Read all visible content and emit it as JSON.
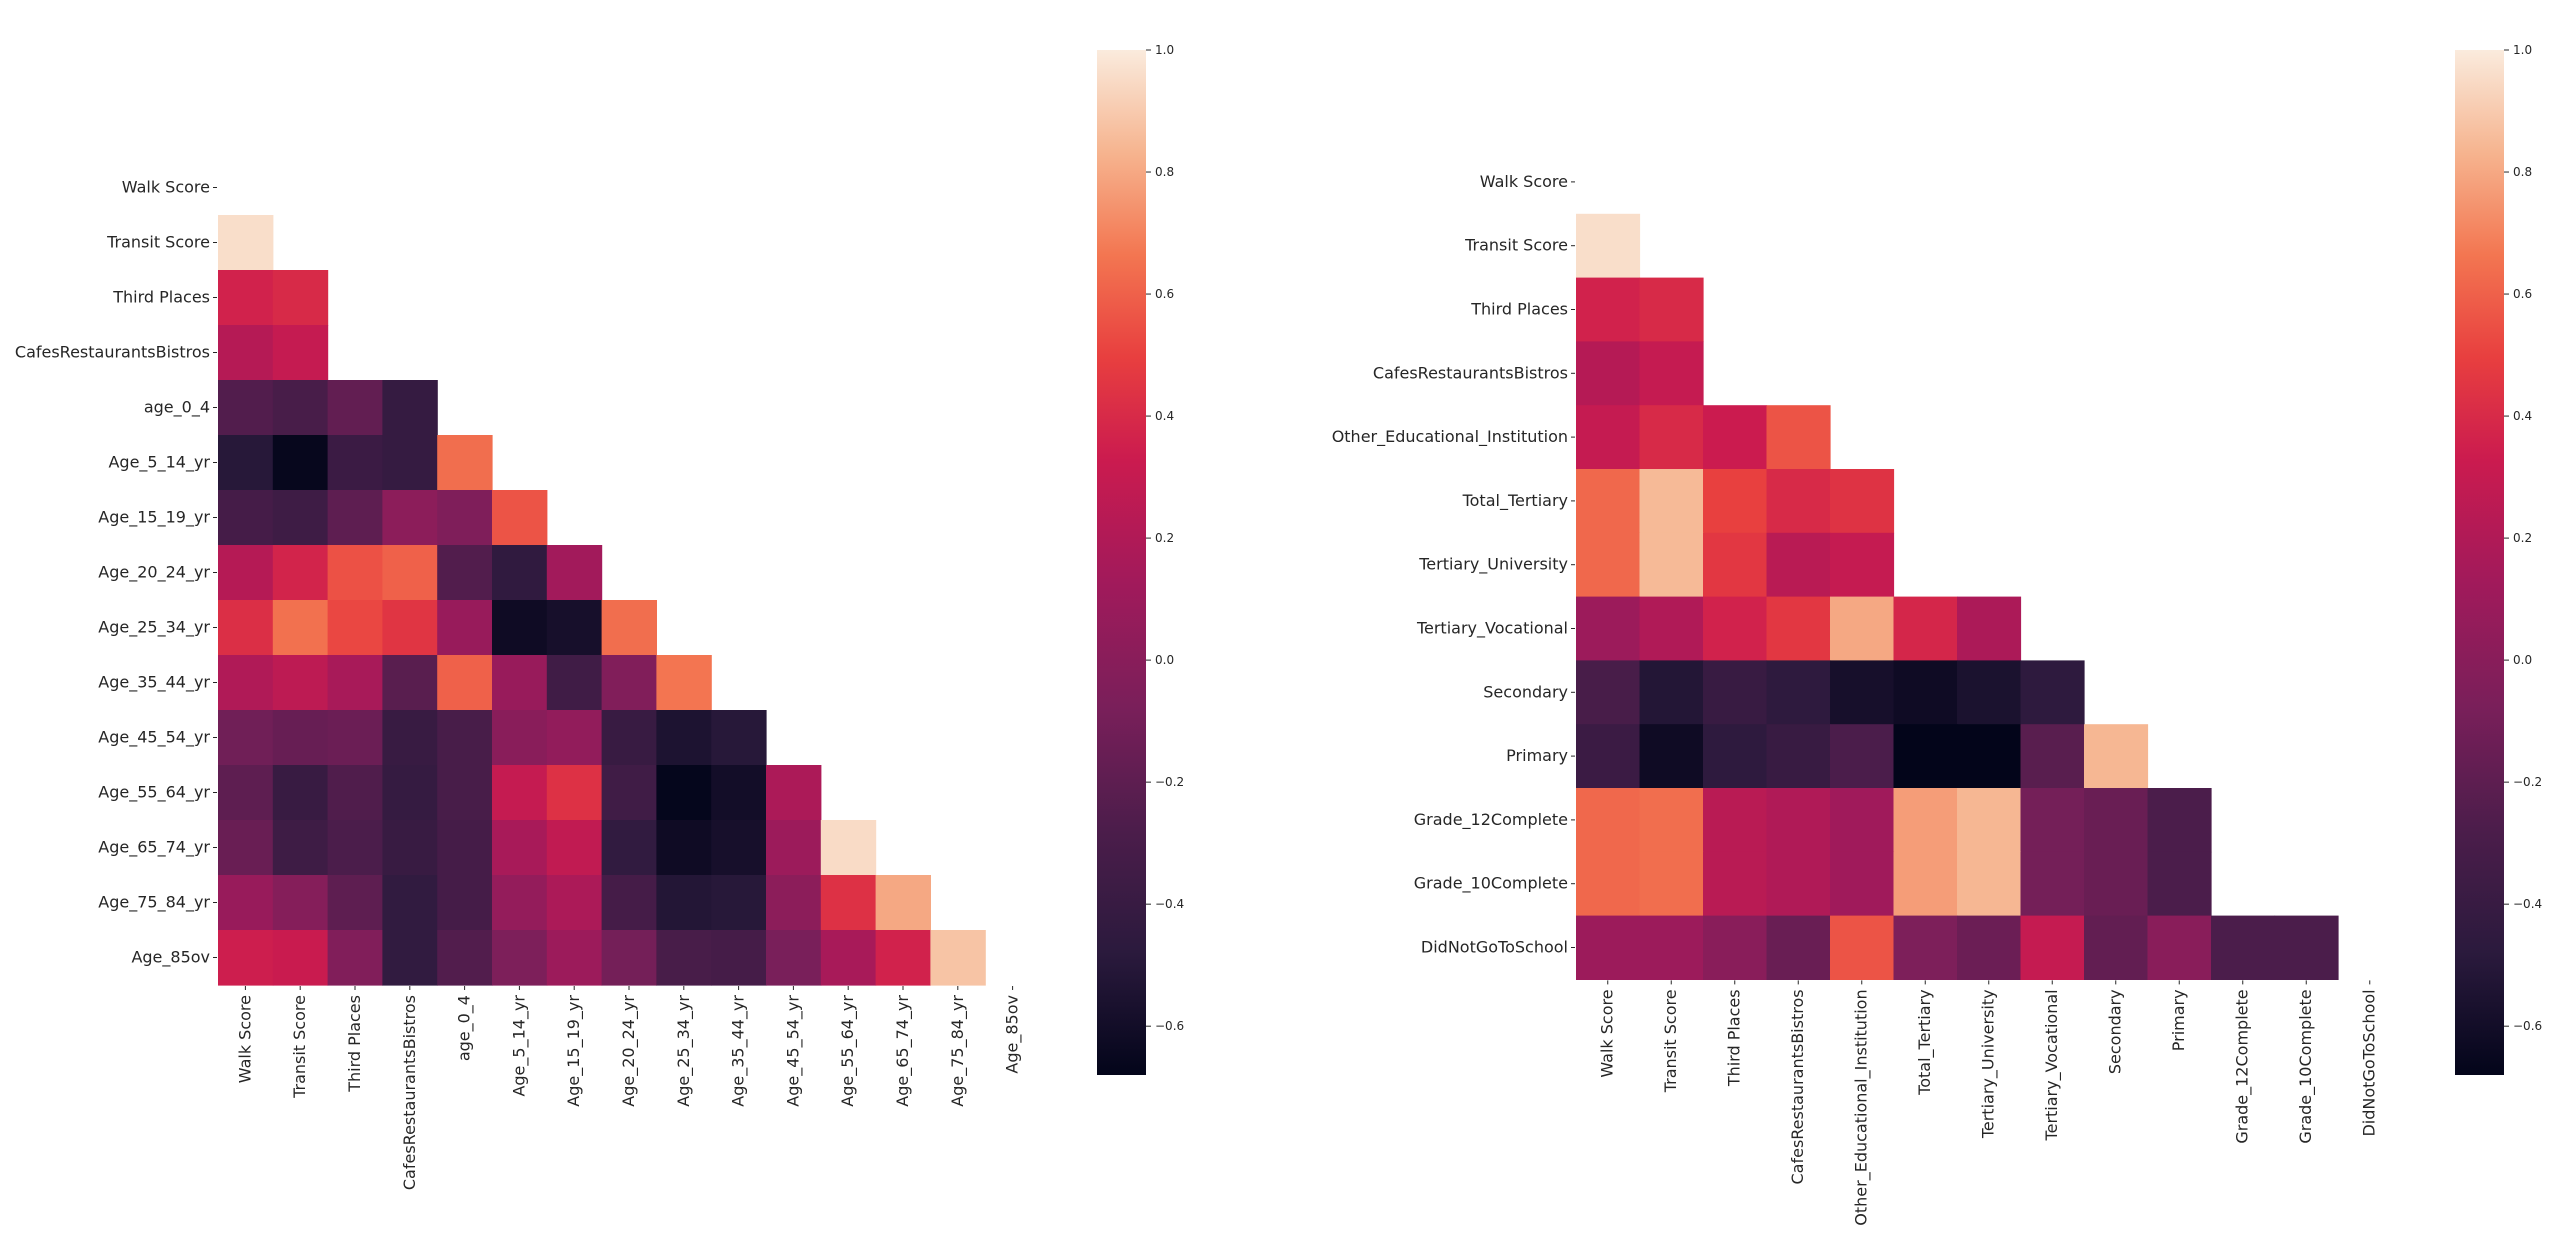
{
  "chart_data": [
    {
      "type": "heatmap",
      "mask": "upper-triangle-including-diagonal",
      "colormap": "rocket",
      "vmin": -0.68,
      "vmax": 1.0,
      "labels": [
        "Walk Score",
        "Transit Score",
        "Third Places",
        "CafesRestaurantsBistros",
        "age_0_4",
        "Age_5_14_yr",
        "Age_15_19_yr",
        "Age_20_24_yr",
        "Age_25_34_yr",
        "Age_35_44_yr",
        "Age_45_54_yr",
        "Age_55_64_yr",
        "Age_65_74_yr",
        "Age_75_84_yr",
        "Age_85ov"
      ],
      "row_labels": [
        "Walk Score",
        "Transit Score",
        "Third Places",
        "CafesRestaurantsBistros",
        "age_0_4",
        "Age_5_14_yr",
        "Age_15_19_yr",
        "Age_20_24_yr",
        "Age_25_34_yr",
        "Age_35_44_yr",
        "Age_45_54_yr",
        "Age_55_64_yr",
        "Age_65_74_yr",
        "Age_75_84_yr",
        "Age_85ov"
      ],
      "values": [
        [
          null,
          null,
          null,
          null,
          null,
          null,
          null,
          null,
          null,
          null,
          null,
          null,
          null,
          null,
          null
        ],
        [
          0.96,
          null,
          null,
          null,
          null,
          null,
          null,
          null,
          null,
          null,
          null,
          null,
          null,
          null,
          null
        ],
        [
          0.36,
          0.4,
          null,
          null,
          null,
          null,
          null,
          null,
          null,
          null,
          null,
          null,
          null,
          null,
          null
        ],
        [
          0.22,
          0.3,
          null,
          null,
          null,
          null,
          null,
          null,
          null,
          null,
          null,
          null,
          null,
          null,
          null
        ],
        [
          -0.25,
          -0.3,
          -0.18,
          -0.42,
          null,
          null,
          null,
          null,
          null,
          null,
          null,
          null,
          null,
          null,
          null
        ],
        [
          -0.5,
          -0.66,
          -0.38,
          -0.42,
          0.64,
          null,
          null,
          null,
          null,
          null,
          null,
          null,
          null,
          null,
          null
        ],
        [
          -0.32,
          -0.36,
          -0.2,
          0.02,
          -0.05,
          0.56,
          null,
          null,
          null,
          null,
          null,
          null,
          null,
          null,
          null
        ],
        [
          0.22,
          0.37,
          0.55,
          0.6,
          -0.25,
          -0.45,
          0.13,
          null,
          null,
          null,
          null,
          null,
          null,
          null,
          null
        ],
        [
          0.42,
          0.65,
          0.52,
          0.45,
          0.08,
          -0.62,
          -0.58,
          0.64,
          null,
          null,
          null,
          null,
          null,
          null,
          null
        ],
        [
          0.2,
          0.26,
          0.16,
          -0.22,
          0.6,
          0.08,
          -0.35,
          -0.04,
          0.66,
          null,
          null,
          null,
          null,
          null,
          null
        ],
        [
          -0.12,
          -0.16,
          -0.14,
          -0.4,
          -0.3,
          0.0,
          0.05,
          -0.4,
          -0.55,
          -0.5,
          null,
          null,
          null,
          null,
          null
        ],
        [
          -0.2,
          -0.4,
          -0.26,
          -0.42,
          -0.3,
          0.3,
          0.43,
          -0.35,
          -0.67,
          -0.6,
          0.18,
          null,
          null,
          null,
          null
        ],
        [
          -0.15,
          -0.36,
          -0.28,
          -0.4,
          -0.32,
          0.16,
          0.28,
          -0.44,
          -0.62,
          -0.58,
          0.1,
          0.95,
          null,
          null,
          null
        ],
        [
          0.08,
          -0.02,
          -0.2,
          -0.44,
          -0.32,
          0.06,
          0.18,
          -0.32,
          -0.52,
          -0.5,
          0.02,
          0.43,
          0.8,
          null,
          null
        ],
        [
          0.34,
          0.32,
          -0.04,
          -0.44,
          -0.25,
          -0.06,
          0.1,
          -0.1,
          -0.3,
          -0.32,
          -0.08,
          0.16,
          0.36,
          0.88,
          null
        ]
      ],
      "colorbar": {
        "ticks": [
          1.0,
          0.8,
          0.6,
          0.4,
          0.2,
          0.0,
          -0.2,
          -0.4,
          -0.6
        ],
        "tick_labels": [
          "1.0",
          "0.8",
          "0.6",
          "0.4",
          "0.2",
          "0.0",
          "−0.2",
          "−0.4",
          "−0.6"
        ]
      }
    },
    {
      "type": "heatmap",
      "mask": "upper-triangle-including-diagonal",
      "colormap": "rocket",
      "vmin": -0.68,
      "vmax": 1.0,
      "labels": [
        "Walk Score",
        "Transit Score",
        "Third Places",
        "CafesRestaurantsBistros",
        "Other_Educational_Institution",
        "Total_Tertiary",
        "Tertiary_University",
        "Tertiary_Vocational",
        "Secondary",
        "Primary",
        "Grade_12Complete",
        "Grade_10Complete",
        "DidNotGoToSchool"
      ],
      "row_labels": [
        "Walk Score",
        "Transit Score",
        "Third Places",
        "CafesRestaurantsBistros",
        "Other_Educational_Institution",
        "Total_Tertiary",
        "Tertiary_University",
        "Tertiary_Vocational",
        "Secondary",
        "Primary",
        "Grade_12Complete",
        "Grade_10Complete",
        "DidNotGoToSchool"
      ],
      "values": [
        [
          null,
          null,
          null,
          null,
          null,
          null,
          null,
          null,
          null,
          null,
          null,
          null,
          null
        ],
        [
          0.96,
          null,
          null,
          null,
          null,
          null,
          null,
          null,
          null,
          null,
          null,
          null,
          null
        ],
        [
          0.36,
          0.4,
          null,
          null,
          null,
          null,
          null,
          null,
          null,
          null,
          null,
          null,
          null
        ],
        [
          0.22,
          0.3,
          null,
          null,
          null,
          null,
          null,
          null,
          null,
          null,
          null,
          null,
          null
        ],
        [
          0.3,
          0.4,
          0.33,
          0.56,
          null,
          null,
          null,
          null,
          null,
          null,
          null,
          null,
          null
        ],
        [
          0.62,
          0.85,
          0.5,
          0.4,
          0.44,
          null,
          null,
          null,
          null,
          null,
          null,
          null,
          null
        ],
        [
          0.62,
          0.85,
          0.46,
          0.24,
          0.3,
          null,
          null,
          null,
          null,
          null,
          null,
          null,
          null
        ],
        [
          0.1,
          0.2,
          0.36,
          0.46,
          0.8,
          0.38,
          0.18,
          null,
          null,
          null,
          null,
          null,
          null
        ],
        [
          -0.3,
          -0.52,
          -0.4,
          -0.46,
          -0.58,
          -0.62,
          -0.56,
          -0.46,
          null,
          null,
          null,
          null,
          null
        ],
        [
          -0.38,
          -0.62,
          -0.46,
          -0.4,
          -0.28,
          -0.68,
          -0.68,
          -0.22,
          0.84,
          null,
          null,
          null,
          null
        ],
        [
          0.62,
          0.64,
          0.24,
          0.2,
          0.12,
          0.77,
          0.84,
          -0.1,
          -0.15,
          -0.28,
          null,
          null,
          null
        ],
        [
          0.62,
          0.64,
          0.24,
          0.2,
          0.12,
          0.77,
          0.84,
          -0.1,
          -0.15,
          -0.28,
          null,
          null,
          null
        ],
        [
          0.1,
          0.1,
          0.0,
          -0.15,
          0.56,
          -0.06,
          -0.14,
          0.3,
          -0.18,
          0.0,
          -0.28,
          -0.28,
          null
        ]
      ],
      "colorbar": {
        "ticks": [
          1.0,
          0.8,
          0.6,
          0.4,
          0.2,
          0.0,
          -0.2,
          -0.4,
          -0.6
        ],
        "tick_labels": [
          "1.0",
          "0.8",
          "0.6",
          "0.4",
          "0.2",
          "0.0",
          "−0.2",
          "−0.4",
          "−0.6"
        ]
      }
    }
  ]
}
